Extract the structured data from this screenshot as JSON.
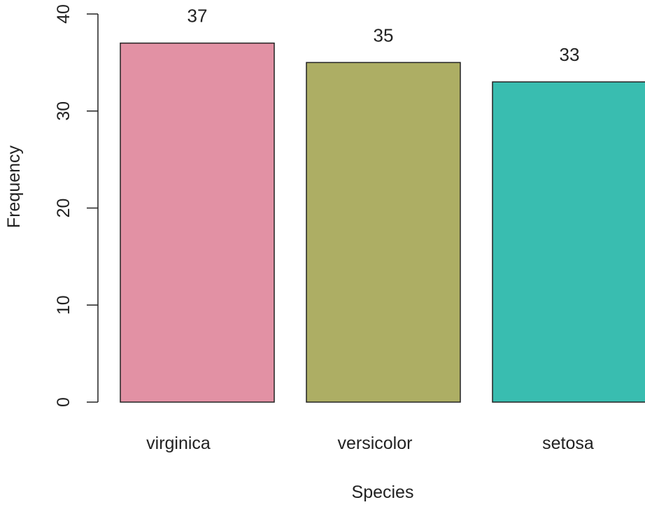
{
  "chart_data": {
    "type": "bar",
    "categories": [
      "virginica",
      "versicolor",
      "setosa"
    ],
    "values": [
      37,
      35,
      33
    ],
    "data_labels": [
      "37",
      "35",
      "33"
    ],
    "colors": [
      "#E291A4",
      "#ADAE64",
      "#39BDB0"
    ],
    "xlabel": "Species",
    "ylabel": "Frequency",
    "ylim": [
      0,
      40
    ],
    "yticks": [
      0,
      10,
      20,
      30,
      40
    ],
    "grid": false,
    "legend": "none"
  }
}
